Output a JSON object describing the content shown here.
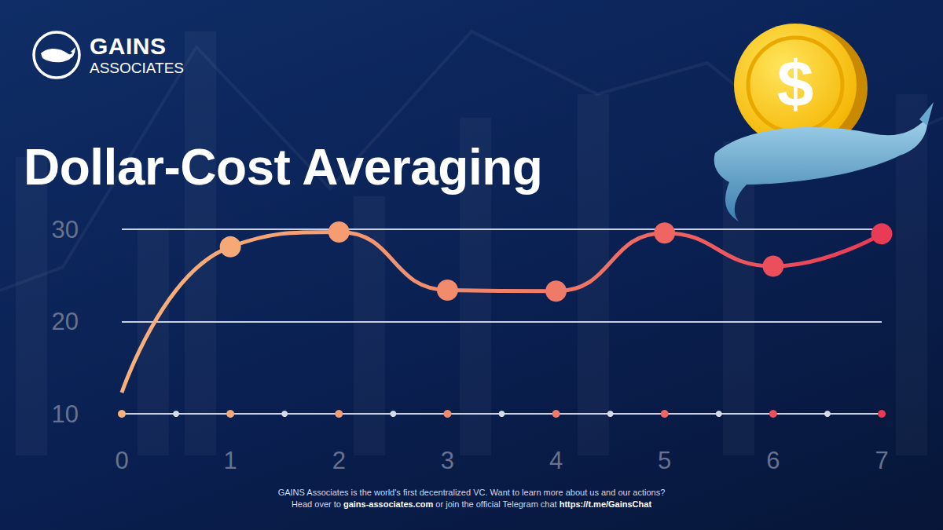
{
  "header": {
    "logo_line1": "GAINS",
    "logo_line2": "ASSOCIATES",
    "title": "Dollar-Cost Averaging",
    "coin_symbol": "$"
  },
  "chart_data": {
    "type": "line",
    "x": [
      0,
      1,
      2,
      3,
      4,
      5,
      6,
      7
    ],
    "values": [
      12.3,
      28.1,
      29.7,
      23.4,
      23.3,
      29.6,
      26.0,
      29.5
    ],
    "colors": [
      "#f8b07a",
      "#f6a877",
      "#f59c72",
      "#f28a6c",
      "#f07a68",
      "#ee6562",
      "#eb4f5c",
      "#e93a56"
    ],
    "xlim": [
      0,
      7
    ],
    "xticks": [
      0,
      1,
      2,
      3,
      4,
      5,
      6,
      7
    ],
    "ylim": [
      10,
      30
    ],
    "yticks": [
      10,
      20,
      30
    ],
    "grid": true,
    "marker": "circle",
    "line_style": "smooth"
  },
  "footer": {
    "lines": [
      [
        {
          "text": "GAINS Associates is the world's first decentralized VC. Want to learn more about us and our actions?",
          "bold": false
        }
      ],
      [
        {
          "text": "Head over to ",
          "bold": false
        },
        {
          "text": "gains-associates.com",
          "bold": true
        },
        {
          "text": " or join the official Telegram chat ",
          "bold": false
        },
        {
          "text": "https://t.me/GainsChat",
          "bold": true
        }
      ]
    ]
  }
}
